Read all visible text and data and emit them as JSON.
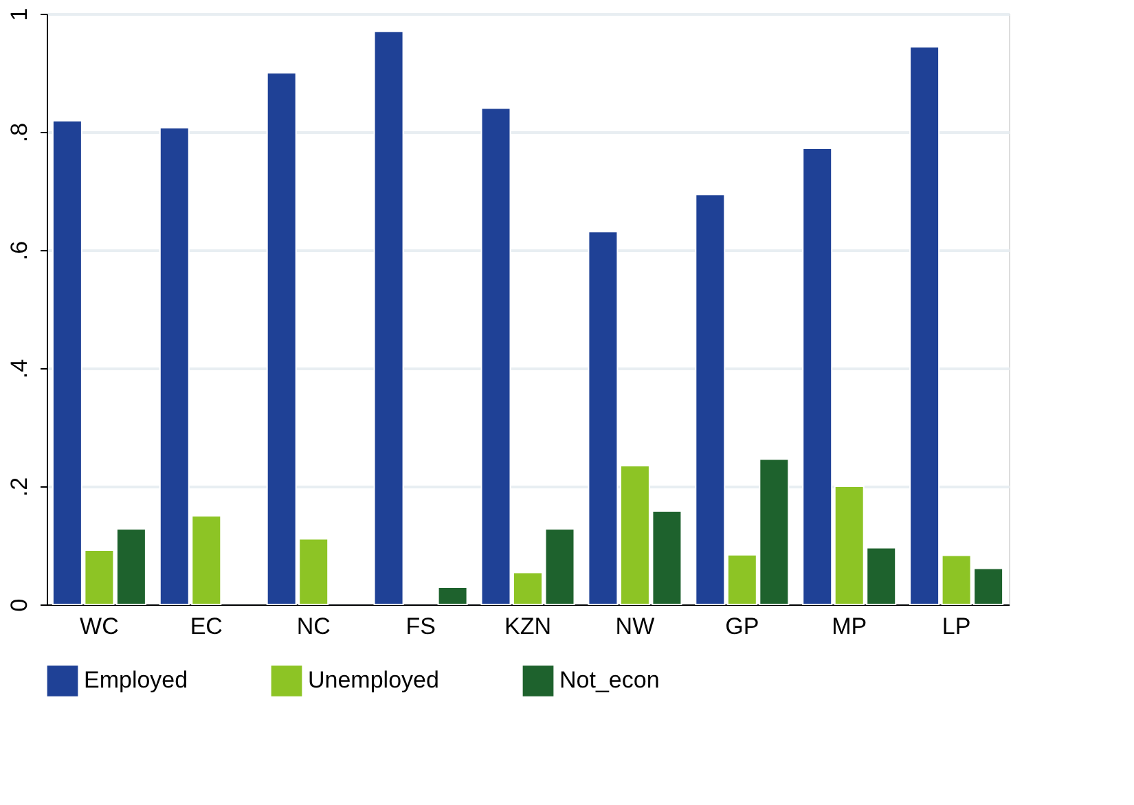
{
  "chart_data": {
    "type": "bar",
    "categories": [
      "WC",
      "EC",
      "NC",
      "FS",
      "KZN",
      "NW",
      "GP",
      "MP",
      "LP"
    ],
    "series": [
      {
        "name": "Employed",
        "color": "#1f4196",
        "values": [
          0.819,
          0.807,
          0.9,
          0.97,
          0.84,
          0.631,
          0.694,
          0.772,
          0.944
        ]
      },
      {
        "name": "Unemployed",
        "color": "#8dc425",
        "values": [
          0.092,
          0.15,
          0.111,
          null,
          0.054,
          0.235,
          0.084,
          0.2,
          0.083
        ]
      },
      {
        "name": "Not_econ",
        "color": "#1e622d",
        "values": [
          0.128,
          null,
          null,
          0.029,
          0.128,
          0.158,
          0.246,
          0.096,
          0.061
        ]
      }
    ],
    "ylim": [
      0,
      1
    ],
    "yticks": [
      {
        "value": 0,
        "label": "0"
      },
      {
        "value": 0.2,
        "label": ".2"
      },
      {
        "value": 0.4,
        "label": ".4"
      },
      {
        "value": 0.6,
        "label": ".6"
      },
      {
        "value": 0.8,
        "label": ".8"
      },
      {
        "value": 1,
        "label": "1"
      }
    ],
    "grid": "y",
    "legend": "bottom"
  }
}
